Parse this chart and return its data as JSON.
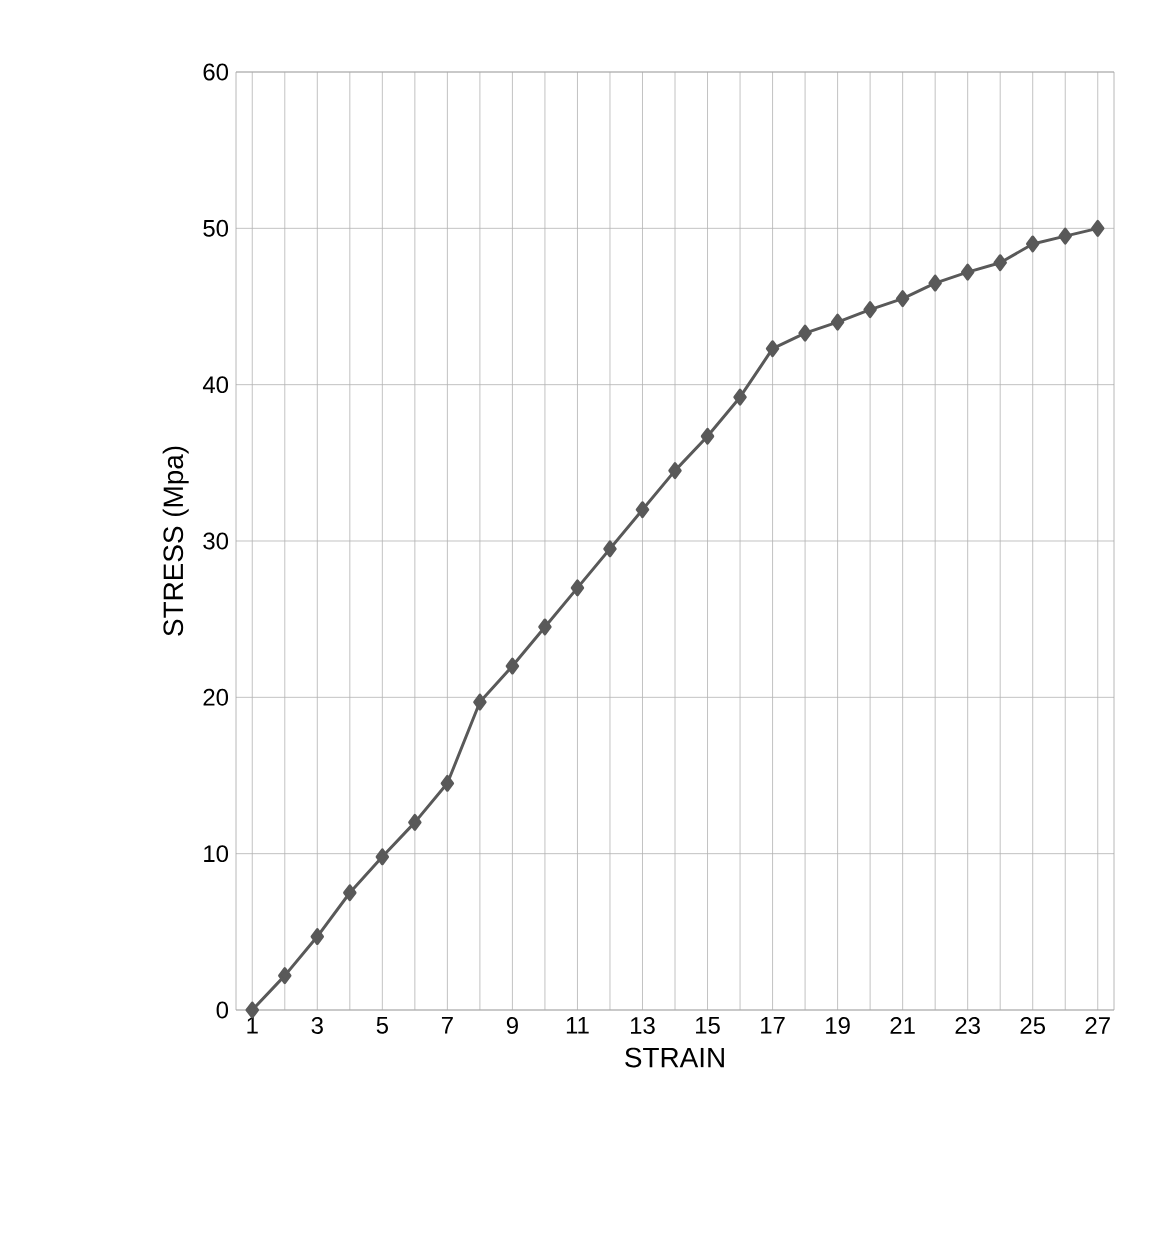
{
  "chart_data": {
    "type": "line",
    "xlabel": "STRAIN",
    "ylabel": "STRESS (Mpa)",
    "categories": [
      "1",
      null,
      "3",
      null,
      "5",
      null,
      "7",
      null,
      "9",
      null,
      "11",
      null,
      "13",
      null,
      "15",
      null,
      "17",
      null,
      "19",
      null,
      "21",
      null,
      "23",
      null,
      "25",
      null,
      "27"
    ],
    "series": [
      {
        "color": "#595959",
        "values": [
          0,
          2.2,
          4.7,
          7.5,
          9.8,
          12,
          14.5,
          19.7,
          22,
          24.5,
          27,
          29.5,
          32,
          34.5,
          36.7,
          39.2,
          42.3,
          43.3,
          44,
          44.8,
          45.5,
          46.5,
          47.2,
          47.8,
          49,
          49.5,
          50
        ]
      }
    ],
    "ylim": [
      0,
      60
    ],
    "yticks": [
      0,
      10,
      20,
      30,
      40,
      50,
      60
    ],
    "grid": true,
    "marker": "diamond",
    "line_style": "solid"
  }
}
